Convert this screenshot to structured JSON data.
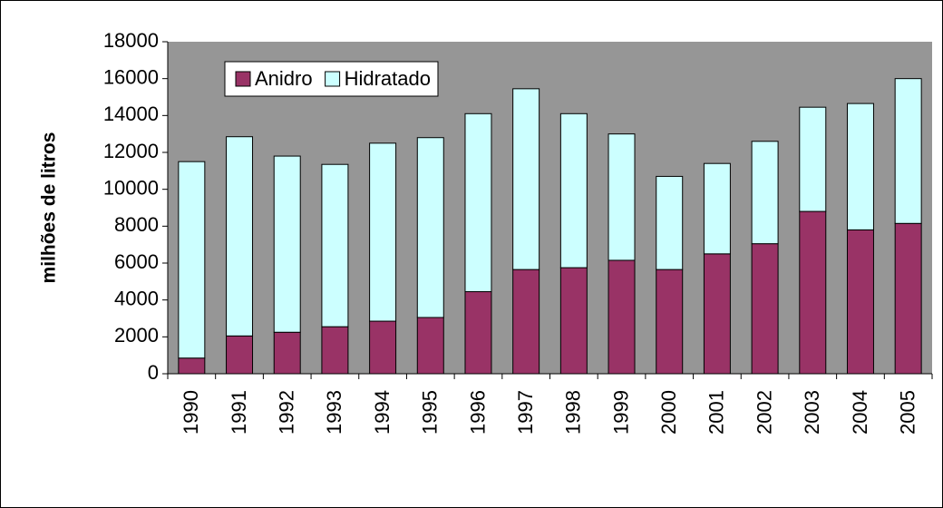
{
  "chart_data": {
    "type": "stacked_bar",
    "y_label": "milhões de litros",
    "categories": [
      "1990",
      "1991",
      "1992",
      "1993",
      "1994",
      "1995",
      "1996",
      "1997",
      "1998",
      "1999",
      "2000",
      "2001",
      "2002",
      "2003",
      "2004",
      "2005"
    ],
    "series": [
      {
        "name": "Anidro",
        "color": "#993366",
        "values": [
          850,
          2050,
          2250,
          2550,
          2850,
          3050,
          4450,
          5650,
          5750,
          6150,
          5650,
          6500,
          7050,
          8800,
          7800,
          8150
        ]
      },
      {
        "name": "Hidratado",
        "color": "#ccffff",
        "values": [
          10650,
          10800,
          9550,
          8800,
          9650,
          9750,
          9650,
          9800,
          8350,
          6850,
          5050,
          4900,
          5550,
          5650,
          6850,
          7850
        ]
      }
    ],
    "ylim": [
      0,
      18000
    ],
    "yticks": [
      0,
      2000,
      4000,
      6000,
      8000,
      10000,
      12000,
      14000,
      16000,
      18000
    ],
    "plot_background": "#969696",
    "legend": "top-left",
    "grid": false
  }
}
